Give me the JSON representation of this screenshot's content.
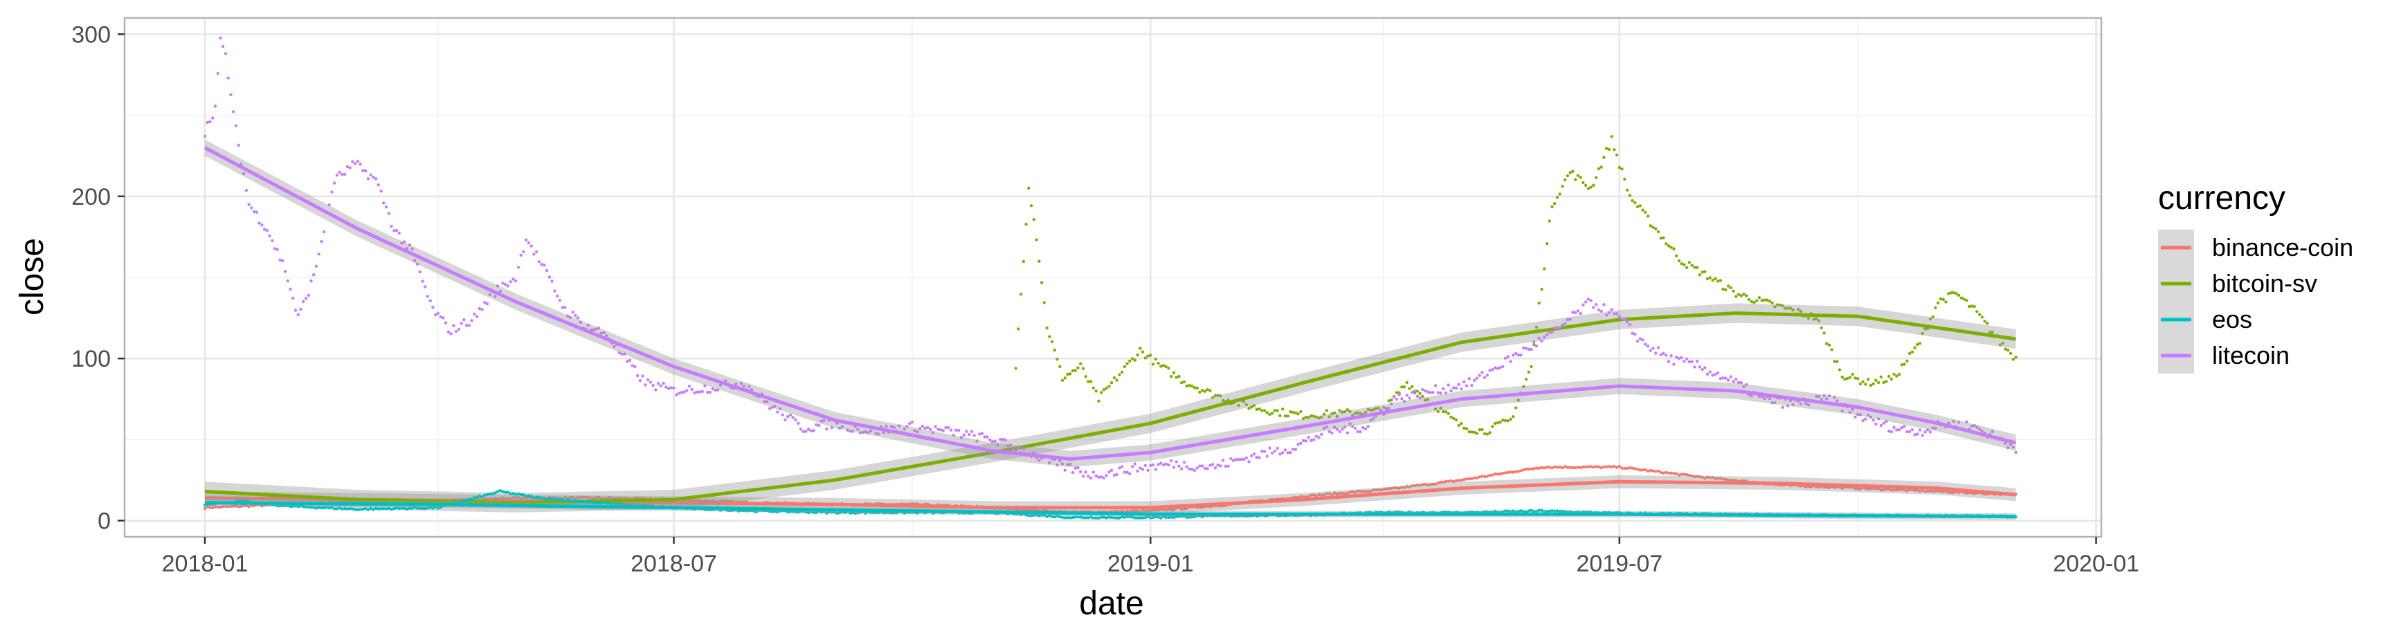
{
  "chart_data": {
    "type": "scatter",
    "xlabel": "date",
    "ylabel": "close",
    "x_ticks": [
      "2018-01",
      "2018-07",
      "2019-01",
      "2019-07",
      "2020-01"
    ],
    "y_ticks": [
      0,
      100,
      200,
      300
    ],
    "xlim": [
      "2017-12-01",
      "2020-01-03"
    ],
    "ylim": [
      -10,
      310
    ],
    "grid": true,
    "smoother": "loess with shaded confidence band",
    "legend": {
      "title": "currency",
      "position": "right",
      "entries": [
        "binance-coin",
        "bitcoin-sv",
        "eos",
        "litecoin"
      ]
    },
    "series": [
      {
        "name": "binance-coin",
        "color": "#F8766D",
        "points": [
          [
            "2018-01-01",
            8
          ],
          [
            "2018-02-01",
            10
          ],
          [
            "2018-03-01",
            12
          ],
          [
            "2018-04-01",
            12
          ],
          [
            "2018-05-01",
            14
          ],
          [
            "2018-06-01",
            14
          ],
          [
            "2018-07-01",
            13
          ],
          [
            "2018-08-01",
            11
          ],
          [
            "2018-09-01",
            10
          ],
          [
            "2018-10-01",
            10
          ],
          [
            "2018-11-01",
            8
          ],
          [
            "2018-12-01",
            5
          ],
          [
            "2019-01-01",
            6
          ],
          [
            "2019-02-01",
            10
          ],
          [
            "2019-03-01",
            15
          ],
          [
            "2019-04-01",
            19
          ],
          [
            "2019-05-01",
            25
          ],
          [
            "2019-06-01",
            33
          ],
          [
            "2019-07-01",
            33
          ],
          [
            "2019-08-01",
            27
          ],
          [
            "2019-09-01",
            22
          ],
          [
            "2019-10-01",
            20
          ],
          [
            "2019-11-01",
            18
          ],
          [
            "2019-12-01",
            16
          ]
        ],
        "trend": [
          [
            "2018-01-01",
            14
          ],
          [
            "2018-03-01",
            13
          ],
          [
            "2018-05-01",
            12
          ],
          [
            "2018-07-01",
            11
          ],
          [
            "2018-09-01",
            10
          ],
          [
            "2018-11-01",
            8
          ],
          [
            "2019-01-01",
            8
          ],
          [
            "2019-03-01",
            13
          ],
          [
            "2019-05-01",
            20
          ],
          [
            "2019-07-01",
            24
          ],
          [
            "2019-09-01",
            23
          ],
          [
            "2019-11-01",
            20
          ],
          [
            "2019-12-01",
            16
          ]
        ]
      },
      {
        "name": "bitcoin-sv",
        "color": "#7CAE00",
        "points": [
          [
            "2018-11-10",
            95
          ],
          [
            "2018-11-15",
            207
          ],
          [
            "2018-11-18",
            175
          ],
          [
            "2018-11-22",
            120
          ],
          [
            "2018-11-28",
            88
          ],
          [
            "2018-12-05",
            95
          ],
          [
            "2018-12-12",
            75
          ],
          [
            "2018-12-20",
            90
          ],
          [
            "2018-12-28",
            105
          ],
          [
            "2019-01-05",
            95
          ],
          [
            "2019-01-15",
            85
          ],
          [
            "2019-01-25",
            78
          ],
          [
            "2019-02-05",
            72
          ],
          [
            "2019-02-15",
            68
          ],
          [
            "2019-03-01",
            65
          ],
          [
            "2019-03-15",
            66
          ],
          [
            "2019-04-01",
            68
          ],
          [
            "2019-04-10",
            85
          ],
          [
            "2019-04-20",
            72
          ],
          [
            "2019-05-01",
            58
          ],
          [
            "2019-05-10",
            55
          ],
          [
            "2019-05-20",
            62
          ],
          [
            "2019-05-28",
            95
          ],
          [
            "2019-06-05",
            195
          ],
          [
            "2019-06-12",
            215
          ],
          [
            "2019-06-20",
            205
          ],
          [
            "2019-06-28",
            235
          ],
          [
            "2019-07-05",
            200
          ],
          [
            "2019-07-15",
            180
          ],
          [
            "2019-07-25",
            160
          ],
          [
            "2019-08-05",
            150
          ],
          [
            "2019-08-15",
            140
          ],
          [
            "2019-08-25",
            135
          ],
          [
            "2019-09-05",
            130
          ],
          [
            "2019-09-15",
            125
          ],
          [
            "2019-09-25",
            90
          ],
          [
            "2019-10-05",
            85
          ],
          [
            "2019-10-15",
            88
          ],
          [
            "2019-10-25",
            110
          ],
          [
            "2019-11-01",
            135
          ],
          [
            "2019-11-08",
            140
          ],
          [
            "2019-11-15",
            130
          ],
          [
            "2019-11-25",
            110
          ],
          [
            "2019-12-01",
            100
          ]
        ],
        "trend": [
          [
            "2018-01-01",
            18
          ],
          [
            "2018-03-01",
            13
          ],
          [
            "2018-05-01",
            11
          ],
          [
            "2018-07-01",
            13
          ],
          [
            "2018-09-01",
            25
          ],
          [
            "2018-11-01",
            42
          ],
          [
            "2019-01-01",
            60
          ],
          [
            "2019-03-01",
            85
          ],
          [
            "2019-05-01",
            110
          ],
          [
            "2019-07-01",
            124
          ],
          [
            "2019-08-15",
            128
          ],
          [
            "2019-10-01",
            126
          ],
          [
            "2019-12-01",
            112
          ]
        ]
      },
      {
        "name": "eos",
        "color": "#00BFC4",
        "points": [
          [
            "2018-01-01",
            10
          ],
          [
            "2018-01-15",
            12
          ],
          [
            "2018-02-01",
            9
          ],
          [
            "2018-03-01",
            7
          ],
          [
            "2018-04-01",
            8
          ],
          [
            "2018-04-25",
            18
          ],
          [
            "2018-05-10",
            14
          ],
          [
            "2018-06-01",
            11
          ],
          [
            "2018-07-01",
            8
          ],
          [
            "2018-08-01",
            6
          ],
          [
            "2018-09-01",
            5
          ],
          [
            "2018-10-01",
            5
          ],
          [
            "2018-11-01",
            5
          ],
          [
            "2018-12-01",
            2
          ],
          [
            "2019-01-01",
            2
          ],
          [
            "2019-02-01",
            3
          ],
          [
            "2019-03-01",
            3.5
          ],
          [
            "2019-04-01",
            5
          ],
          [
            "2019-05-01",
            5
          ],
          [
            "2019-06-01",
            6
          ],
          [
            "2019-07-01",
            4.5
          ],
          [
            "2019-08-01",
            4
          ],
          [
            "2019-09-01",
            3.5
          ],
          [
            "2019-10-01",
            3
          ],
          [
            "2019-11-01",
            3
          ],
          [
            "2019-12-01",
            2.5
          ]
        ],
        "trend": [
          [
            "2018-01-01",
            11
          ],
          [
            "2018-04-01",
            10
          ],
          [
            "2018-07-01",
            8
          ],
          [
            "2018-10-01",
            6
          ],
          [
            "2019-01-01",
            4
          ],
          [
            "2019-04-01",
            4
          ],
          [
            "2019-07-01",
            4
          ],
          [
            "2019-10-01",
            3
          ],
          [
            "2019-12-01",
            2.5
          ]
        ]
      },
      {
        "name": "litecoin",
        "color": "#C77CFF",
        "points": [
          [
            "2018-01-01",
            240
          ],
          [
            "2018-01-05",
            255
          ],
          [
            "2018-01-07",
            295
          ],
          [
            "2018-01-09",
            287
          ],
          [
            "2018-01-12",
            250
          ],
          [
            "2018-01-18",
            195
          ],
          [
            "2018-01-25",
            180
          ],
          [
            "2018-02-01",
            155
          ],
          [
            "2018-02-06",
            125
          ],
          [
            "2018-02-12",
            150
          ],
          [
            "2018-02-20",
            210
          ],
          [
            "2018-02-28",
            220
          ],
          [
            "2018-03-08",
            210
          ],
          [
            "2018-03-15",
            180
          ],
          [
            "2018-03-22",
            165
          ],
          [
            "2018-03-30",
            130
          ],
          [
            "2018-04-06",
            117
          ],
          [
            "2018-04-15",
            125
          ],
          [
            "2018-04-22",
            140
          ],
          [
            "2018-05-01",
            150
          ],
          [
            "2018-05-05",
            175
          ],
          [
            "2018-05-12",
            155
          ],
          [
            "2018-05-20",
            130
          ],
          [
            "2018-05-28",
            120
          ],
          [
            "2018-06-05",
            115
          ],
          [
            "2018-06-12",
            100
          ],
          [
            "2018-06-20",
            85
          ],
          [
            "2018-07-01",
            80
          ],
          [
            "2018-07-15",
            82
          ],
          [
            "2018-07-28",
            85
          ],
          [
            "2018-08-08",
            70
          ],
          [
            "2018-08-20",
            57
          ],
          [
            "2018-09-01",
            60
          ],
          [
            "2018-09-15",
            55
          ],
          [
            "2018-10-01",
            58
          ],
          [
            "2018-10-15",
            55
          ],
          [
            "2018-11-01",
            50
          ],
          [
            "2018-11-15",
            42
          ],
          [
            "2018-11-25",
            35
          ],
          [
            "2018-12-10",
            28
          ],
          [
            "2018-12-25",
            32
          ],
          [
            "2019-01-10",
            35
          ],
          [
            "2019-01-25",
            33
          ],
          [
            "2019-02-10",
            40
          ],
          [
            "2019-02-25",
            45
          ],
          [
            "2019-03-10",
            55
          ],
          [
            "2019-03-25",
            58
          ],
          [
            "2019-04-05",
            75
          ],
          [
            "2019-04-20",
            80
          ],
          [
            "2019-05-05",
            85
          ],
          [
            "2019-05-20",
            100
          ],
          [
            "2019-06-05",
            115
          ],
          [
            "2019-06-20",
            135
          ],
          [
            "2019-07-01",
            125
          ],
          [
            "2019-07-10",
            110
          ],
          [
            "2019-07-20",
            100
          ],
          [
            "2019-08-01",
            95
          ],
          [
            "2019-08-15",
            85
          ],
          [
            "2019-08-25",
            75
          ],
          [
            "2019-09-05",
            72
          ],
          [
            "2019-09-20",
            75
          ],
          [
            "2019-10-01",
            65
          ],
          [
            "2019-10-15",
            57
          ],
          [
            "2019-10-25",
            55
          ],
          [
            "2019-11-05",
            60
          ],
          [
            "2019-11-15",
            58
          ],
          [
            "2019-11-25",
            50
          ],
          [
            "2019-12-01",
            45
          ]
        ],
        "trend": [
          [
            "2018-01-01",
            230
          ],
          [
            "2018-03-01",
            180
          ],
          [
            "2018-05-01",
            135
          ],
          [
            "2018-07-01",
            95
          ],
          [
            "2018-09-01",
            62
          ],
          [
            "2018-11-01",
            43
          ],
          [
            "2018-12-01",
            38
          ],
          [
            "2019-01-01",
            42
          ],
          [
            "2019-03-01",
            58
          ],
          [
            "2019-05-01",
            75
          ],
          [
            "2019-07-01",
            83
          ],
          [
            "2019-08-15",
            80
          ],
          [
            "2019-10-01",
            70
          ],
          [
            "2019-11-01",
            60
          ],
          [
            "2019-12-01",
            48
          ]
        ]
      }
    ]
  }
}
